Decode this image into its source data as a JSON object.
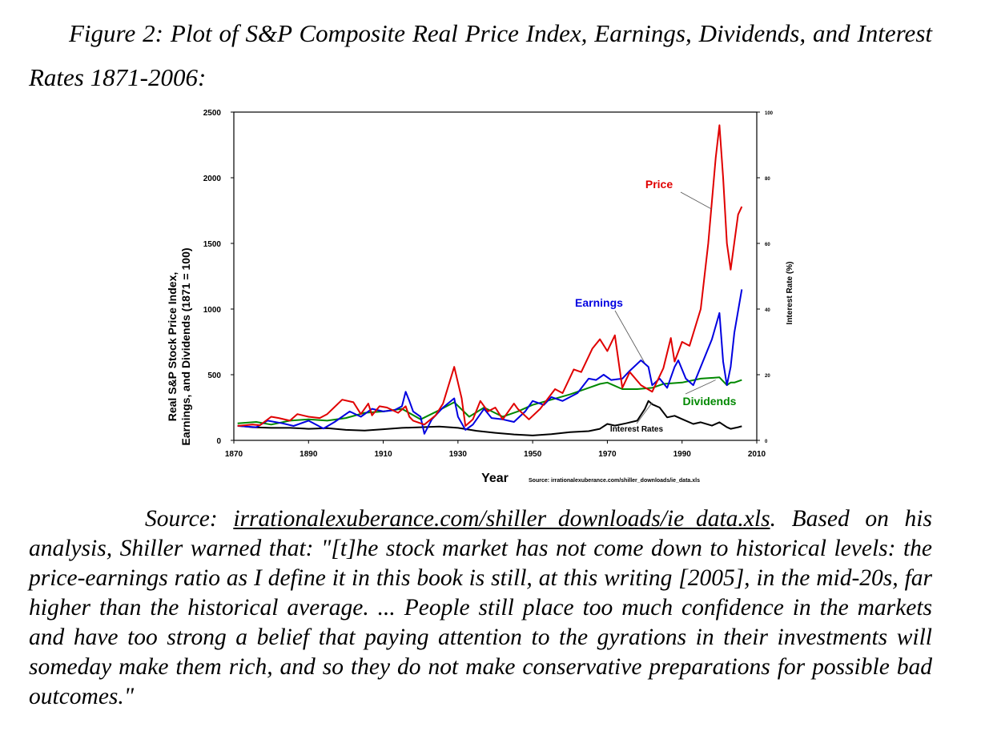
{
  "caption": {
    "text": "Figure 2: Plot of S&P Composite Real Price Index, Earnings, Dividends, and Interest Rates 1871-2006:"
  },
  "chart_data": {
    "type": "line",
    "xlabel": "Year",
    "ylabel_left_line1": "Real S&P Stock Price Index,",
    "ylabel_left_line2": "Earnings, and Dividends (1871 = 100)",
    "ylabel_right": "Interest Rate (%)",
    "source_note": "Source: irrationalexuberance.com/shiller_downloads/ie_data.xls",
    "xlim": [
      1870,
      2010
    ],
    "ylim_left": [
      0,
      2500
    ],
    "ylim_right": [
      0,
      100
    ],
    "x_ticks": [
      "1870",
      "1890",
      "1910",
      "1930",
      "1950",
      "1970",
      "1990",
      "2010"
    ],
    "y_ticks_left": [
      "0",
      "500",
      "1000",
      "1500",
      "2000",
      "2500"
    ],
    "y_ticks_right": [
      "0",
      "20",
      "40",
      "60",
      "80",
      "100"
    ],
    "grid": false,
    "series": [
      {
        "name": "Price",
        "color": "#e00000",
        "axis": "left",
        "x": [
          1871,
          1875,
          1877,
          1880,
          1882,
          1885,
          1887,
          1890,
          1893,
          1895,
          1899,
          1902,
          1904,
          1906,
          1907,
          1909,
          1911,
          1914,
          1916,
          1917,
          1918,
          1920,
          1921,
          1924,
          1926,
          1929,
          1931,
          1932,
          1934,
          1936,
          1938,
          1940,
          1942,
          1945,
          1946,
          1949,
          1952,
          1956,
          1958,
          1961,
          1963,
          1966,
          1968,
          1970,
          1972,
          1974,
          1976,
          1979,
          1982,
          1985,
          1987,
          1988,
          1990,
          1992,
          1995,
          1997,
          1999,
          2000,
          2001,
          2002,
          2003,
          2005,
          2006
        ],
        "values": [
          110,
          120,
          115,
          180,
          170,
          150,
          200,
          180,
          170,
          200,
          310,
          290,
          200,
          280,
          190,
          260,
          250,
          210,
          260,
          180,
          150,
          130,
          120,
          190,
          280,
          560,
          320,
          110,
          160,
          300,
          220,
          250,
          160,
          280,
          240,
          160,
          240,
          390,
          360,
          540,
          520,
          700,
          770,
          680,
          800,
          400,
          520,
          420,
          370,
          550,
          780,
          600,
          750,
          720,
          1000,
          1500,
          2150,
          2400,
          2000,
          1500,
          1300,
          1720,
          1780
        ]
      },
      {
        "name": "Earnings",
        "color": "#0000e0",
        "axis": "left",
        "x": [
          1871,
          1876,
          1879,
          1883,
          1886,
          1890,
          1894,
          1897,
          1901,
          1904,
          1907,
          1910,
          1913,
          1915,
          1916,
          1917,
          1918,
          1920,
          1921,
          1923,
          1926,
          1929,
          1930,
          1932,
          1934,
          1937,
          1939,
          1942,
          1945,
          1948,
          1950,
          1953,
          1955,
          1958,
          1960,
          1962,
          1965,
          1967,
          1969,
          1971,
          1974,
          1976,
          1979,
          1981,
          1982,
          1984,
          1986,
          1988,
          1989,
          1991,
          1993,
          1995,
          1998,
          2000,
          2001,
          2002,
          2003,
          2004,
          2006
        ],
        "values": [
          110,
          100,
          150,
          130,
          110,
          150,
          90,
          140,
          220,
          180,
          240,
          220,
          230,
          260,
          370,
          300,
          220,
          180,
          50,
          160,
          250,
          320,
          180,
          80,
          120,
          240,
          170,
          160,
          140,
          220,
          300,
          270,
          330,
          300,
          330,
          360,
          470,
          460,
          500,
          460,
          470,
          530,
          610,
          560,
          420,
          470,
          400,
          560,
          610,
          470,
          420,
          560,
          770,
          970,
          600,
          420,
          560,
          820,
          1150
        ]
      },
      {
        "name": "Dividends",
        "color": "#008800",
        "axis": "left",
        "x": [
          1871,
          1876,
          1880,
          1885,
          1890,
          1895,
          1900,
          1905,
          1910,
          1915,
          1920,
          1925,
          1929,
          1933,
          1937,
          1942,
          1946,
          1950,
          1955,
          1960,
          1965,
          1968,
          1970,
          1974,
          1978,
          1982,
          1985,
          1990,
          1995,
          2000,
          2002,
          2003,
          2004,
          2006
        ],
        "values": [
          130,
          140,
          120,
          150,
          160,
          150,
          170,
          210,
          220,
          240,
          160,
          230,
          290,
          180,
          250,
          180,
          220,
          270,
          310,
          350,
          400,
          430,
          440,
          390,
          390,
          400,
          430,
          440,
          470,
          480,
          420,
          440,
          440,
          460
        ]
      },
      {
        "name": "Interest Rates",
        "color": "#000000",
        "axis": "right",
        "x": [
          1871,
          1875,
          1880,
          1885,
          1890,
          1895,
          1900,
          1905,
          1910,
          1915,
          1920,
          1925,
          1930,
          1935,
          1940,
          1945,
          1950,
          1955,
          1960,
          1965,
          1968,
          1970,
          1972,
          1975,
          1978,
          1980,
          1981,
          1982,
          1984,
          1986,
          1988,
          1990,
          1993,
          1995,
          1998,
          2000,
          2002,
          2003,
          2005,
          2006
        ],
        "values": [
          4.5,
          4.0,
          3.8,
          3.8,
          3.5,
          3.7,
          3.2,
          3.0,
          3.4,
          3.8,
          4.0,
          4.2,
          3.8,
          2.9,
          2.3,
          1.8,
          1.5,
          1.9,
          2.5,
          2.8,
          3.5,
          5.0,
          4.5,
          5.2,
          6.0,
          9.5,
          12.0,
          11.0,
          10.0,
          7.0,
          7.5,
          6.5,
          5.0,
          5.5,
          4.5,
          5.5,
          4.0,
          3.5,
          4.0,
          4.3
        ]
      }
    ],
    "annotations": [
      {
        "label": "Price",
        "color": "#e00000",
        "pointer": [
          1998,
          1760
        ]
      },
      {
        "label": "Earnings",
        "color": "#0000e0",
        "pointer": [
          1980,
          590
        ]
      },
      {
        "label": "Dividends",
        "color": "#008800",
        "pointer": [
          1999,
          460
        ]
      },
      {
        "label": "Interest Rates",
        "color": "#000000",
        "pointer": [
          1982,
          11.5
        ]
      }
    ]
  },
  "body": {
    "source_prefix": "Source: ",
    "source_link": "irrationalexuberance.com/shiller_downloads/ie_data.xls",
    "text": ". Based on his analysis, Shiller warned that: \"[t]he stock market has not come down to historical levels: the price-earnings ratio as I define it in this book is still, at this writing [2005], in the mid-20s, far higher than the historical average. ... People still place too much confidence in the markets and have too strong a belief that paying attention to the gyrations in their investments will someday make them rich, and so they do not make conservative preparations for possible bad outcomes.\""
  }
}
